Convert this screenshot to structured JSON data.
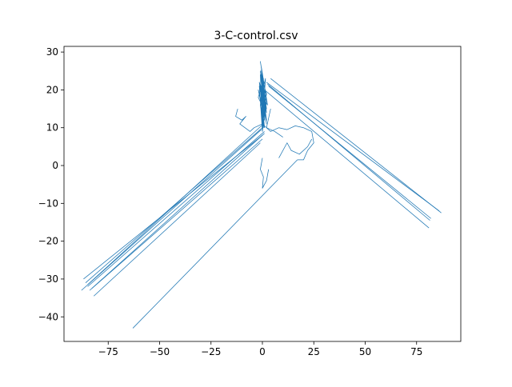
{
  "chart_data": {
    "type": "line",
    "title": "3-C-control.csv",
    "xlabel": "",
    "ylabel": "",
    "xlim": [
      -96.5,
      96.5
    ],
    "ylim": [
      -46.5,
      31.5
    ],
    "xticks": [
      -75,
      -50,
      -25,
      0,
      25,
      50,
      75
    ],
    "yticks": [
      -40,
      -30,
      -20,
      -10,
      0,
      10,
      20,
      30
    ],
    "xtick_labels": [
      "−75",
      "−50",
      "−25",
      "0",
      "25",
      "50",
      "75"
    ],
    "ytick_labels": [
      "−40",
      "−30",
      "−20",
      "−10",
      "0",
      "10",
      "20",
      "30"
    ],
    "grid": false,
    "legend": "none",
    "color": "#1f77b4",
    "series": [
      {
        "values_description_free": true,
        "x": [
          0,
          -1,
          1,
          -0.5,
          1.5,
          -1,
          0.5,
          2,
          -1.5,
          1,
          -0.5,
          0.5,
          1.5,
          -1,
          2,
          0,
          -1.5,
          1,
          -0.5,
          2,
          0.5,
          -1,
          1.5,
          0,
          -0.5,
          1,
          -1.5,
          0.5,
          2,
          -1,
          0,
          1,
          -0.5,
          1.5,
          -2,
          0.5,
          1,
          -1,
          0,
          2,
          -0.5,
          1,
          0,
          -1.5,
          1.5,
          0.5,
          -1,
          1,
          0,
          2.5,
          -0.5,
          1,
          -2,
          0.5,
          1.5,
          -1,
          0,
          1,
          -0.5,
          2,
          -1.5,
          0.5,
          1,
          -1,
          0.5
        ],
        "y": [
          12,
          16,
          10,
          20,
          14,
          24,
          18,
          11,
          22,
          15,
          26,
          13,
          19,
          27.5,
          17,
          9,
          21,
          14,
          23,
          12,
          18,
          25,
          16,
          10,
          20,
          15,
          22,
          13,
          19,
          24,
          11,
          17,
          21,
          14,
          18,
          23,
          12,
          16,
          20,
          15,
          25,
          13,
          19,
          22,
          17,
          10,
          21,
          14,
          18,
          16,
          26,
          12,
          20,
          15,
          23,
          17,
          11,
          19,
          24,
          14,
          21,
          16,
          13,
          18,
          15
        ]
      },
      {
        "x": [
          0,
          -87
        ],
        "y": [
          8,
          -30
        ]
      },
      {
        "x": [
          1,
          -85
        ],
        "y": [
          9,
          -32
        ]
      },
      {
        "x": [
          0,
          -84
        ],
        "y": [
          7,
          -33
        ]
      },
      {
        "x": [
          -1,
          -82
        ],
        "y": [
          6,
          -34.5
        ]
      },
      {
        "x": [
          0,
          -86
        ],
        "y": [
          10,
          -31
        ]
      },
      {
        "x": [
          1,
          -83
        ],
        "y": [
          8.5,
          -32.5
        ]
      },
      {
        "x": [
          -0.5,
          -88
        ],
        "y": [
          9.5,
          -33
        ]
      },
      {
        "x": [
          0.5,
          -85
        ],
        "y": [
          11,
          -31.5
        ]
      },
      {
        "x": [
          17,
          -63
        ],
        "y": [
          1.5,
          -43
        ]
      },
      {
        "x": [
          2,
          86
        ],
        "y": [
          22,
          -12
        ]
      },
      {
        "x": [
          3,
          82
        ],
        "y": [
          21,
          -14
        ]
      },
      {
        "x": [
          1,
          81
        ],
        "y": [
          20,
          -16.5
        ]
      },
      {
        "x": [
          4,
          87
        ],
        "y": [
          23,
          -12.5
        ]
      },
      {
        "x": [
          2.5,
          81.5
        ],
        "y": [
          21.5,
          -14.5
        ]
      },
      {
        "x": [
          -12,
          -13,
          -10,
          -8,
          -11,
          -6,
          -4,
          0,
          4,
          8,
          12,
          16,
          20,
          24,
          25,
          22,
          20,
          17
        ],
        "y": [
          15,
          13,
          12,
          13,
          11,
          9,
          10,
          11,
          9,
          10,
          9.5,
          10.5,
          10,
          9,
          6,
          4,
          1.5,
          1.5
        ]
      },
      {
        "x": [
          0,
          -1,
          0.5,
          0,
          2,
          3
        ],
        "y": [
          2,
          -1,
          -3,
          -6,
          -4,
          -1
        ]
      },
      {
        "x": [
          4,
          2,
          6,
          10
        ],
        "y": [
          15,
          10,
          9,
          7.5
        ]
      },
      {
        "x": [
          8,
          12,
          14,
          18,
          22,
          24
        ],
        "y": [
          2,
          6,
          4,
          3,
          5,
          7
        ]
      }
    ]
  }
}
